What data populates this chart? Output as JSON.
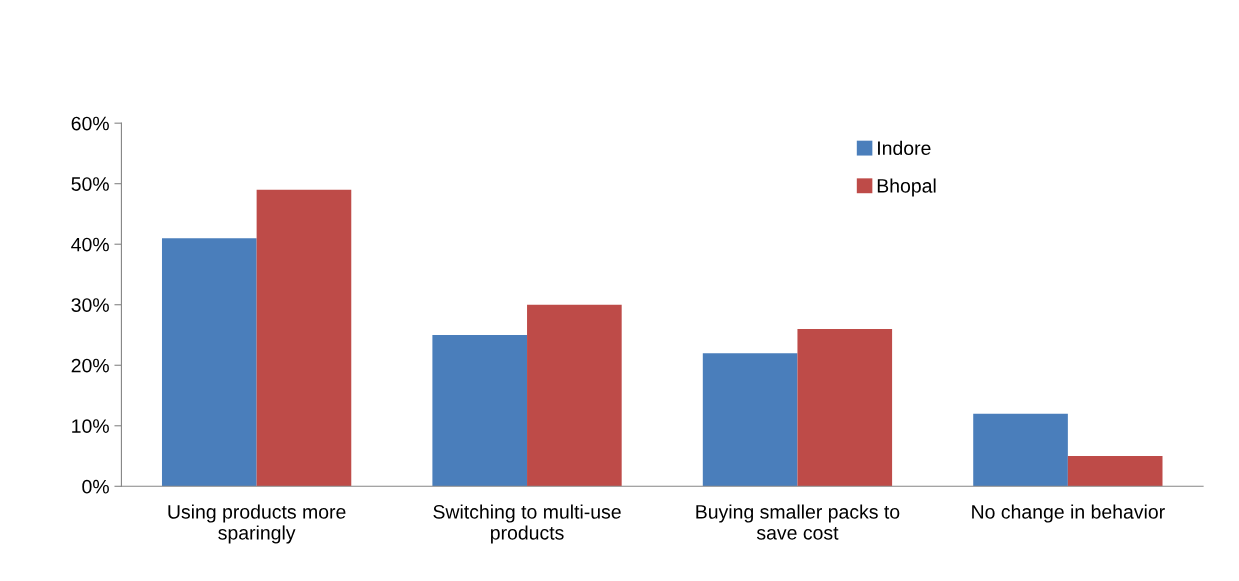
{
  "chart_data": {
    "type": "bar",
    "categories": [
      "Using products more sparingly",
      "Switching to multi-use products",
      "Buying smaller packs to save cost",
      "No change in behavior"
    ],
    "series": [
      {
        "name": "Indore",
        "color": "#4a7ebb",
        "values": [
          41,
          25,
          22,
          12
        ]
      },
      {
        "name": "Bhopal",
        "color": "#be4b48",
        "values": [
          49,
          30,
          26,
          5
        ]
      }
    ],
    "ylim": [
      0,
      60
    ],
    "yticks": [
      {
        "value": 0,
        "label": "0%"
      },
      {
        "value": 10,
        "label": "10%"
      },
      {
        "value": 20,
        "label": "20%"
      },
      {
        "value": 30,
        "label": "30%"
      },
      {
        "value": 40,
        "label": "40%"
      },
      {
        "value": 50,
        "label": "50%"
      },
      {
        "value": 60,
        "label": "60%"
      }
    ],
    "grid": false,
    "legend": "top right"
  }
}
